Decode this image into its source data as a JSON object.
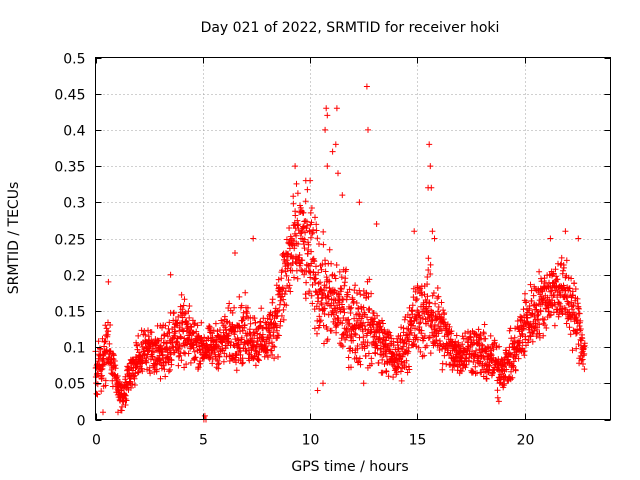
{
  "chart_data": {
    "type": "scatter",
    "title": "Day 021 of 2022, SRMTID for receiver hoki",
    "xlabel": "GPS time / hours",
    "ylabel": "SRMTID / TECUs",
    "xlim": [
      0,
      24
    ],
    "ylim": [
      0,
      0.5
    ],
    "xticks": [
      0,
      5,
      10,
      15,
      20
    ],
    "xtick_labels": [
      "0",
      "5",
      "10",
      "15",
      "20"
    ],
    "yticks": [
      0,
      0.05,
      0.1,
      0.15,
      0.2,
      0.25,
      0.3,
      0.35,
      0.4,
      0.45,
      0.5
    ],
    "ytick_labels": [
      "0",
      "0.05",
      "0.1",
      "0.15",
      "0.2",
      "0.25",
      "0.3",
      "0.35",
      "0.4",
      "0.45",
      "0.5"
    ],
    "grid": true,
    "marker": "+",
    "color": "#ff0000",
    "series": [
      {
        "name": "SRMTID",
        "profile": {
          "x": [
            0.0,
            0.3,
            0.6,
            0.9,
            1.2,
            1.5,
            2.0,
            2.5,
            3.0,
            3.5,
            4.0,
            4.5,
            5.0,
            5.5,
            6.0,
            6.5,
            7.0,
            7.5,
            8.0,
            8.5,
            9.0,
            9.5,
            10.0,
            10.5,
            11.0,
            11.5,
            12.0,
            12.5,
            13.0,
            13.5,
            14.0,
            14.5,
            15.0,
            15.5,
            16.0,
            16.5,
            17.0,
            17.5,
            18.0,
            18.5,
            19.0,
            19.5,
            20.0,
            20.5,
            21.0,
            21.5,
            22.0,
            22.5,
            22.8
          ],
          "y": [
            0.06,
            0.08,
            0.1,
            0.06,
            0.03,
            0.05,
            0.09,
            0.1,
            0.09,
            0.11,
            0.12,
            0.11,
            0.1,
            0.1,
            0.11,
            0.12,
            0.12,
            0.11,
            0.11,
            0.15,
            0.22,
            0.25,
            0.22,
            0.18,
            0.16,
            0.15,
            0.13,
            0.14,
            0.12,
            0.1,
            0.08,
            0.11,
            0.14,
            0.15,
            0.13,
            0.1,
            0.09,
            0.1,
            0.09,
            0.08,
            0.07,
            0.09,
            0.13,
            0.15,
            0.17,
            0.18,
            0.17,
            0.13,
            0.09
          ],
          "spread": [
            0.03,
            0.04,
            0.05,
            0.03,
            0.02,
            0.03,
            0.03,
            0.03,
            0.04,
            0.05,
            0.05,
            0.04,
            0.03,
            0.03,
            0.04,
            0.05,
            0.05,
            0.04,
            0.04,
            0.06,
            0.08,
            0.08,
            0.08,
            0.08,
            0.07,
            0.07,
            0.06,
            0.07,
            0.05,
            0.04,
            0.03,
            0.05,
            0.06,
            0.07,
            0.06,
            0.04,
            0.03,
            0.04,
            0.04,
            0.04,
            0.03,
            0.04,
            0.05,
            0.05,
            0.05,
            0.05,
            0.06,
            0.05,
            0.03
          ]
        },
        "points_per_hour": 110,
        "outliers": [
          {
            "x": 10.75,
            "y": 0.43
          },
          {
            "x": 10.8,
            "y": 0.42
          },
          {
            "x": 11.25,
            "y": 0.43
          },
          {
            "x": 12.65,
            "y": 0.46
          },
          {
            "x": 12.7,
            "y": 0.4
          },
          {
            "x": 10.7,
            "y": 0.4
          },
          {
            "x": 11.2,
            "y": 0.38
          },
          {
            "x": 11.05,
            "y": 0.37
          },
          {
            "x": 15.55,
            "y": 0.38
          },
          {
            "x": 15.6,
            "y": 0.35
          },
          {
            "x": 15.5,
            "y": 0.32
          },
          {
            "x": 15.65,
            "y": 0.32
          },
          {
            "x": 9.3,
            "y": 0.35
          },
          {
            "x": 9.8,
            "y": 0.33
          },
          {
            "x": 10.0,
            "y": 0.33
          },
          {
            "x": 10.8,
            "y": 0.35
          },
          {
            "x": 11.3,
            "y": 0.34
          },
          {
            "x": 11.5,
            "y": 0.31
          },
          {
            "x": 12.3,
            "y": 0.3
          },
          {
            "x": 13.1,
            "y": 0.27
          },
          {
            "x": 14.85,
            "y": 0.26
          },
          {
            "x": 15.7,
            "y": 0.26
          },
          {
            "x": 15.8,
            "y": 0.25
          },
          {
            "x": 21.2,
            "y": 0.25
          },
          {
            "x": 21.9,
            "y": 0.26
          },
          {
            "x": 22.5,
            "y": 0.25
          },
          {
            "x": 7.35,
            "y": 0.25
          },
          {
            "x": 6.5,
            "y": 0.23
          },
          {
            "x": 0.6,
            "y": 0.19
          },
          {
            "x": 3.5,
            "y": 0.2
          },
          {
            "x": 5.05,
            "y": 0.0
          },
          {
            "x": 5.1,
            "y": 0.005
          },
          {
            "x": 5.15,
            "y": 0.0
          },
          {
            "x": 0.35,
            "y": 0.01
          },
          {
            "x": 1.05,
            "y": 0.01
          },
          {
            "x": 1.4,
            "y": 0.02
          },
          {
            "x": 18.75,
            "y": 0.03
          },
          {
            "x": 18.8,
            "y": 0.025
          },
          {
            "x": 10.6,
            "y": 0.05
          },
          {
            "x": 10.35,
            "y": 0.04
          },
          {
            "x": 12.5,
            "y": 0.05
          }
        ]
      }
    ]
  }
}
